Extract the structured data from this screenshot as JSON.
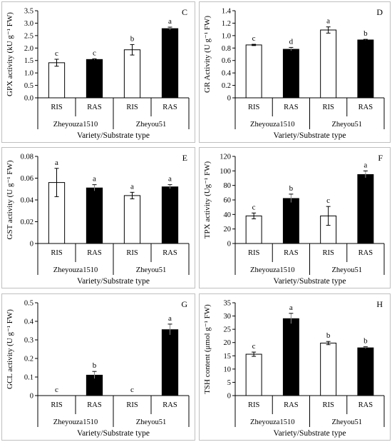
{
  "chart_data": [
    {
      "type": "bar",
      "panel_letter": "C",
      "ylabel": "GPX activity (kU g⁻¹ FW)",
      "xlabel": "Variety/Substrate type",
      "ylim": [
        0,
        3.5
      ],
      "yticks": [
        "0.0",
        "0.5",
        "1.0",
        "1.5",
        "2.0",
        "2.5",
        "3.0",
        "3.5"
      ],
      "categories": [
        "RIS",
        "RAS",
        "RIS",
        "RAS"
      ],
      "groups": [
        "Zheyouza1510",
        "Zheyou51"
      ],
      "values": [
        1.41,
        1.54,
        1.93,
        2.78
      ],
      "errors": [
        0.14,
        0.03,
        0.21,
        0.06
      ],
      "letters": [
        "c",
        "c",
        "b",
        "a"
      ],
      "fills": [
        "#ffffff",
        "#000000",
        "#ffffff",
        "#000000"
      ]
    },
    {
      "type": "bar",
      "panel_letter": "D",
      "ylabel": "GR Activity (U g⁻¹ FW)",
      "xlabel": "Variety/Substrate type",
      "ylim": [
        0,
        1.4
      ],
      "yticks": [
        "0",
        "0.2",
        "0.4",
        "0.6",
        "0.8",
        "1.0",
        "1.2",
        "1.4"
      ],
      "categories": [
        "RIS",
        "RAS",
        "RIS",
        "RAS"
      ],
      "groups": [
        "Zheyouza1510",
        "Zheyou51"
      ],
      "values": [
        0.85,
        0.78,
        1.09,
        0.93
      ],
      "errors": [
        0.01,
        0.03,
        0.05,
        0.01
      ],
      "letters": [
        "c",
        "d",
        "a",
        "b"
      ],
      "fills": [
        "#ffffff",
        "#000000",
        "#ffffff",
        "#000000"
      ]
    },
    {
      "type": "bar",
      "panel_letter": "E",
      "ylabel": "GST activity (U g⁻¹ FW)",
      "xlabel": "Variety/Substrate type",
      "ylim": [
        0,
        0.08
      ],
      "yticks": [
        "0",
        "0.02",
        "0.04",
        "0.06",
        "0.08"
      ],
      "categories": [
        "RIS",
        "RAS",
        "RIS",
        "RAS"
      ],
      "groups": [
        "Zheyouza1510",
        "Zheyou51"
      ],
      "values": [
        0.056,
        0.051,
        0.044,
        0.052
      ],
      "errors": [
        0.013,
        0.003,
        0.003,
        0.002
      ],
      "letters": [
        "a",
        "a",
        "a",
        "a"
      ],
      "fills": [
        "#ffffff",
        "#000000",
        "#ffffff",
        "#000000"
      ]
    },
    {
      "type": "bar",
      "panel_letter": "F",
      "ylabel": "TPX activity (Ug⁻¹ FW)",
      "xlabel": "Variety/Substrate type",
      "ylim": [
        0,
        120
      ],
      "yticks": [
        "0",
        "20",
        "40",
        "60",
        "80",
        "100",
        "120"
      ],
      "categories": [
        "RIS",
        "RAS",
        "RIS",
        "RAS"
      ],
      "groups": [
        "Zheyouza1510",
        "Zheyou51"
      ],
      "values": [
        38,
        62,
        38,
        95
      ],
      "errors": [
        4,
        6,
        13,
        5
      ],
      "letters": [
        "c",
        "b",
        "c",
        "a"
      ],
      "fills": [
        "#ffffff",
        "#000000",
        "#ffffff",
        "#000000"
      ]
    },
    {
      "type": "bar",
      "panel_letter": "G",
      "ylabel": "GCL activity (U g⁻¹ FW)",
      "xlabel": "Variety/Substrate type",
      "ylim": [
        0,
        0.5
      ],
      "yticks": [
        "0",
        "0.1",
        "0.2",
        "0.3",
        "0.4",
        "0.5"
      ],
      "categories": [
        "RIS",
        "RAS",
        "RIS",
        "RAS"
      ],
      "groups": [
        "Zheyouza1510",
        "Zheyou51"
      ],
      "values": [
        0,
        0.11,
        0,
        0.355
      ],
      "errors": [
        0,
        0.02,
        0,
        0.03
      ],
      "letters": [
        "c",
        "b",
        "c",
        "a"
      ],
      "fills": [
        "#ffffff",
        "#000000",
        "#ffffff",
        "#000000"
      ],
      "text_color": "#595959"
    },
    {
      "type": "bar",
      "panel_letter": "H",
      "ylabel": "TSH content (μmol g⁻¹ FW)",
      "xlabel": "Variety/Substrate type",
      "ylim": [
        0,
        35
      ],
      "yticks": [
        "0",
        "5",
        "10",
        "15",
        "20",
        "25",
        "30",
        "35"
      ],
      "categories": [
        "RIS",
        "RAS",
        "RIS",
        "RAS"
      ],
      "groups": [
        "Zheyouza1510",
        "Zheyou51"
      ],
      "values": [
        15.6,
        29,
        19.8,
        18
      ],
      "errors": [
        0.8,
        2,
        0.6,
        0.4
      ],
      "letters": [
        "c",
        "a",
        "b",
        "b"
      ],
      "fills": [
        "#ffffff",
        "#000000",
        "#ffffff",
        "#000000"
      ]
    }
  ]
}
